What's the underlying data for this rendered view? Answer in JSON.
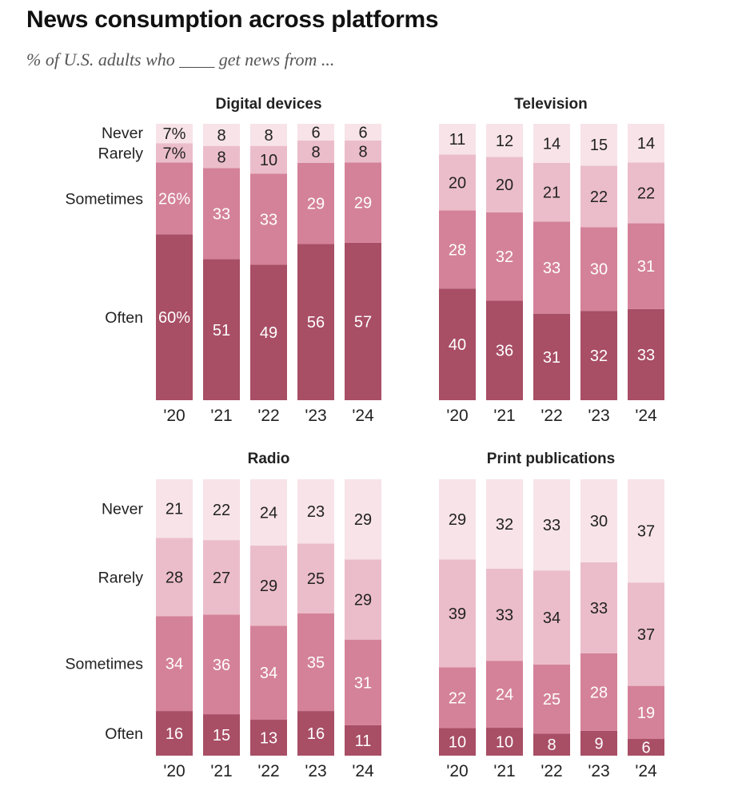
{
  "title": "News consumption across platforms",
  "subtitle": "% of U.S. adults who ____ get news from ...",
  "colors": {
    "never": "#f7e3e8",
    "rarely": "#ebbdca",
    "sometimes": "#d48299",
    "often": "#a84e65",
    "label_dark": "#222222",
    "label_light": "#ffffff"
  },
  "chart_data": [
    {
      "type": "bar",
      "stacked": true,
      "title": "Digital devices",
      "categories": [
        "'20",
        "'21",
        "'22",
        "'23",
        "'24"
      ],
      "series": [
        {
          "name": "Often",
          "values": [
            60,
            51,
            49,
            56,
            57
          ],
          "labels": [
            "60%",
            "51",
            "49",
            "56",
            "57"
          ]
        },
        {
          "name": "Sometimes",
          "values": [
            26,
            33,
            33,
            29,
            29
          ],
          "labels": [
            "26%",
            "33",
            "33",
            "29",
            "29"
          ]
        },
        {
          "name": "Rarely",
          "values": [
            7,
            8,
            10,
            8,
            8
          ],
          "labels": [
            "7%",
            "8",
            "10",
            "8",
            "8"
          ]
        },
        {
          "name": "Never",
          "values": [
            7,
            8,
            8,
            6,
            6
          ],
          "labels": [
            "7%",
            "8",
            "8",
            "6",
            "6"
          ]
        }
      ],
      "ylim": [
        0,
        100
      ]
    },
    {
      "type": "bar",
      "stacked": true,
      "title": "Television",
      "categories": [
        "'20",
        "'21",
        "'22",
        "'23",
        "'24"
      ],
      "series": [
        {
          "name": "Often",
          "values": [
            40,
            36,
            31,
            32,
            33
          ],
          "labels": [
            "40",
            "36",
            "31",
            "32",
            "33"
          ]
        },
        {
          "name": "Sometimes",
          "values": [
            28,
            32,
            33,
            30,
            31
          ],
          "labels": [
            "28",
            "32",
            "33",
            "30",
            "31"
          ]
        },
        {
          "name": "Rarely",
          "values": [
            20,
            20,
            21,
            22,
            22
          ],
          "labels": [
            "20",
            "20",
            "21",
            "22",
            "22"
          ]
        },
        {
          "name": "Never",
          "values": [
            11,
            12,
            14,
            15,
            14
          ],
          "labels": [
            "11",
            "12",
            "14",
            "15",
            "14"
          ]
        }
      ],
      "ylim": [
        0,
        100
      ]
    },
    {
      "type": "bar",
      "stacked": true,
      "title": "Radio",
      "categories": [
        "'20",
        "'21",
        "'22",
        "'23",
        "'24"
      ],
      "series": [
        {
          "name": "Often",
          "values": [
            16,
            15,
            13,
            16,
            11
          ],
          "labels": [
            "16",
            "15",
            "13",
            "16",
            "11"
          ]
        },
        {
          "name": "Sometimes",
          "values": [
            34,
            36,
            34,
            35,
            31
          ],
          "labels": [
            "34",
            "36",
            "34",
            "35",
            "31"
          ]
        },
        {
          "name": "Rarely",
          "values": [
            28,
            27,
            29,
            25,
            29
          ],
          "labels": [
            "28",
            "27",
            "29",
            "25",
            "29"
          ]
        },
        {
          "name": "Never",
          "values": [
            21,
            22,
            24,
            23,
            29
          ],
          "labels": [
            "21",
            "22",
            "24",
            "23",
            "29"
          ]
        }
      ],
      "ylim": [
        0,
        100
      ]
    },
    {
      "type": "bar",
      "stacked": true,
      "title": "Print publications",
      "categories": [
        "'20",
        "'21",
        "'22",
        "'23",
        "'24"
      ],
      "series": [
        {
          "name": "Often",
          "values": [
            10,
            10,
            8,
            9,
            6
          ],
          "labels": [
            "10",
            "10",
            "8",
            "9",
            "6"
          ]
        },
        {
          "name": "Sometimes",
          "values": [
            22,
            24,
            25,
            28,
            19
          ],
          "labels": [
            "22",
            "24",
            "25",
            "28",
            "19"
          ]
        },
        {
          "name": "Rarely",
          "values": [
            39,
            33,
            34,
            33,
            37
          ],
          "labels": [
            "39",
            "33",
            "34",
            "33",
            "37"
          ]
        },
        {
          "name": "Never",
          "values": [
            29,
            32,
            33,
            30,
            37
          ],
          "labels": [
            "29",
            "32",
            "33",
            "30",
            "37"
          ]
        }
      ],
      "ylim": [
        0,
        100
      ]
    }
  ],
  "row_labels": {
    "digital": [
      "Never",
      "Rarely",
      "Sometimes",
      "Often"
    ],
    "radio": [
      "Never",
      "Rarely",
      "Sometimes",
      "Often"
    ]
  }
}
